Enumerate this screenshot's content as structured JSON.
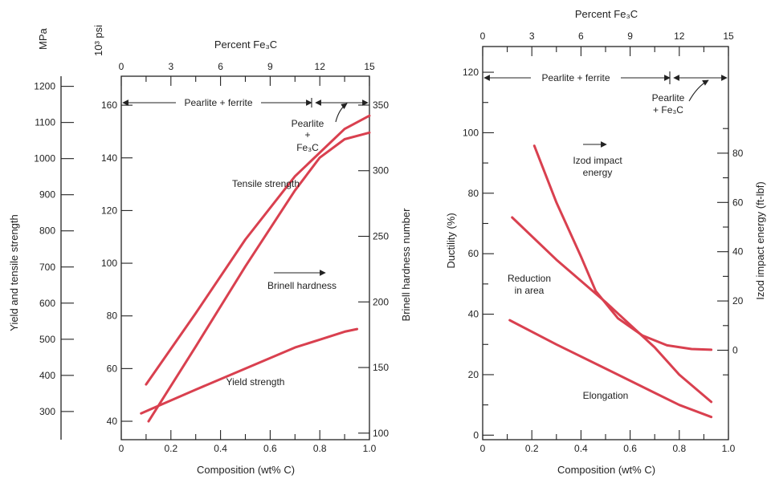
{
  "chart_data": [
    {
      "type": "line",
      "top_axis": {
        "label": "Percent Fe₃C",
        "ticks": [
          0,
          3,
          6,
          9,
          12,
          15
        ]
      },
      "bottom_axis": {
        "label": "Composition (wt% C)",
        "ticks": [
          "0",
          "0.2",
          "0.4",
          "0.6",
          "0.8",
          "1.0"
        ],
        "range": [
          0,
          1.0
        ]
      },
      "axis_mpa": {
        "label": "MPa",
        "ticks": [
          300,
          400,
          500,
          600,
          700,
          800,
          900,
          1000,
          1100,
          1200
        ]
      },
      "axis_ksi": {
        "label": "10³ psi",
        "ticks": [
          40,
          60,
          80,
          100,
          120,
          140,
          160
        ],
        "range": [
          33,
          171
        ]
      },
      "axis_left_title": "Yield and tensile strength",
      "axis_right": {
        "label": "Brinell hardness number",
        "ticks": [
          100,
          150,
          200,
          250,
          300,
          350
        ],
        "range": [
          95,
          372
        ]
      },
      "region_labels": {
        "pearlite_ferrite": "Pearlite + ferrite",
        "pearlite_fe3c": [
          "Pearlite",
          "+",
          "Fe₃C"
        ]
      },
      "series": [
        {
          "name": "Tensile strength",
          "axis": "ksi",
          "x": [
            0.1,
            0.3,
            0.5,
            0.7,
            0.9,
            1.0
          ],
          "y": [
            54,
            81,
            109,
            133,
            151,
            156
          ]
        },
        {
          "name": "Brinell hardness",
          "axis": "brinell",
          "x": [
            0.11,
            0.3,
            0.5,
            0.7,
            0.8,
            0.9,
            1.0
          ],
          "y": [
            109,
            166,
            227,
            285,
            310,
            324,
            329
          ]
        },
        {
          "name": "Yield strength",
          "axis": "ksi",
          "x": [
            0.08,
            0.3,
            0.5,
            0.7,
            0.8,
            0.9,
            0.95
          ],
          "y": [
            43,
            52,
            60,
            68,
            71,
            74,
            75
          ]
        }
      ]
    },
    {
      "type": "line",
      "top_axis": {
        "label": "Percent Fe₃C",
        "ticks": [
          0,
          3,
          6,
          9,
          12,
          15
        ]
      },
      "bottom_axis": {
        "label": "Composition (wt% C)",
        "ticks": [
          "0",
          "0.2",
          "0.4",
          "0.6",
          "0.8",
          "1.0"
        ],
        "range": [
          0,
          1.0
        ]
      },
      "axis_left": {
        "label": "Ductility (%)",
        "ticks": [
          0,
          20,
          40,
          60,
          80,
          100,
          120
        ],
        "range": [
          0,
          120
        ]
      },
      "axis_right": {
        "label": "Izod impact energy (ft-lbf)",
        "ticks": [
          0,
          20,
          40,
          60,
          80
        ],
        "range": [
          -20,
          92
        ]
      },
      "region_labels": {
        "pearlite_ferrite": "Pearlite + ferrite",
        "pearlite_fe3c": [
          "Pearlite",
          "+ Fe₃C"
        ]
      },
      "series": [
        {
          "name": "Izod impact energy",
          "axis": "izod",
          "label": [
            "Izod impact",
            "energy"
          ],
          "x": [
            0.21,
            0.3,
            0.4,
            0.46,
            0.55,
            0.65,
            0.75,
            0.85,
            0.93
          ],
          "y": [
            83,
            60,
            38,
            24,
            13,
            6,
            2,
            0.5,
            0.2
          ]
        },
        {
          "name": "Reduction in area",
          "axis": "ductility",
          "label": [
            "Reduction",
            "in area"
          ],
          "x": [
            0.12,
            0.3,
            0.5,
            0.7,
            0.8,
            0.93
          ],
          "y": [
            72,
            58,
            44,
            29,
            20,
            11
          ]
        },
        {
          "name": "Elongation",
          "axis": "ductility",
          "label": [
            "Elongation"
          ],
          "x": [
            0.11,
            0.3,
            0.5,
            0.7,
            0.8,
            0.93
          ],
          "y": [
            38,
            30,
            22,
            14,
            10,
            6
          ]
        }
      ]
    }
  ]
}
